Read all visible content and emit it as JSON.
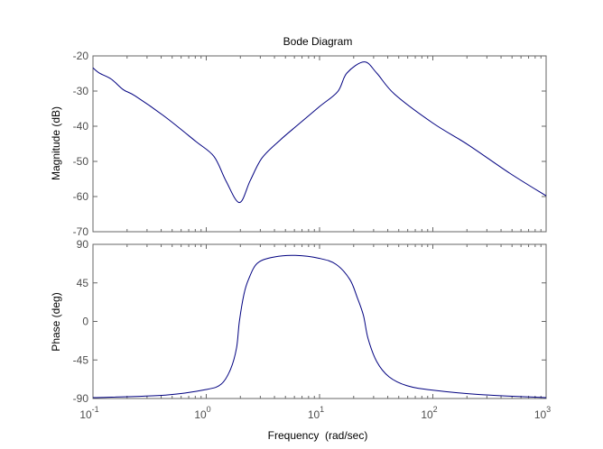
{
  "chart_data": [
    {
      "type": "line",
      "title": "Bode Diagram",
      "xlabel": "Frequency  (rad/sec)",
      "ylabel": "Magnitude (dB)",
      "xscale": "log",
      "xlim": [
        0.1,
        1000
      ],
      "ylim": [
        -70,
        -20
      ],
      "yticks": [
        "-20",
        "-30",
        "-40",
        "-50",
        "-60",
        "-70"
      ],
      "ytick_values": [
        -20,
        -30,
        -40,
        -50,
        -60,
        -70
      ],
      "grid": false,
      "color": "#000080",
      "x": [
        0.1,
        0.114,
        0.145,
        0.185,
        0.236,
        0.436,
        0.807,
        1.17,
        1.49,
        1.96,
        2.44,
        3.11,
        4.5,
        6.5,
        10,
        14.5,
        17.4,
        24.8,
        32,
        46,
        100,
        203,
        479,
        1000
      ],
      "y": [
        -23.4,
        -24.9,
        -26.6,
        -29.6,
        -31.4,
        -37.4,
        -44.3,
        -48.6,
        -55.5,
        -61.7,
        -55.5,
        -49.0,
        -43.9,
        -39.5,
        -34.4,
        -30.1,
        -24.9,
        -21.7,
        -24.9,
        -30.9,
        -39.1,
        -45.2,
        -53.4,
        -59.8
      ]
    },
    {
      "type": "line",
      "xlabel": "Frequency  (rad/sec)",
      "ylabel": "Phase (deg)",
      "xscale": "log",
      "xlim": [
        0.1,
        1000
      ],
      "ylim": [
        -90,
        90
      ],
      "xticks": [
        {
          "base": "10",
          "exp": "-1"
        },
        {
          "base": "10",
          "exp": "0"
        },
        {
          "base": "10",
          "exp": "1"
        },
        {
          "base": "10",
          "exp": "2"
        },
        {
          "base": "10",
          "exp": "3"
        }
      ],
      "xtick_values": [
        0.1,
        1,
        10,
        100,
        1000
      ],
      "yticks": [
        "90",
        "45",
        "0",
        "-45",
        "-90"
      ],
      "ytick_values": [
        90,
        45,
        0,
        -45,
        -90
      ],
      "grid": false,
      "color": "#000080",
      "x": [
        0.1,
        0.436,
        1.0,
        1.36,
        1.64,
        1.85,
        1.96,
        2.15,
        2.36,
        2.83,
        4.0,
        6.1,
        10,
        14.0,
        18.5,
        21.5,
        24.4,
        26.8,
        32,
        41,
        59,
        100,
        260,
        1000
      ],
      "y": [
        -89,
        -86,
        -79.5,
        -73,
        -55.7,
        -31,
        0,
        31.6,
        49,
        68,
        75.3,
        77.1,
        73.6,
        66.6,
        49,
        28,
        7,
        -20,
        -47,
        -64.6,
        -75,
        -80.3,
        -85.4,
        -89
      ]
    }
  ]
}
